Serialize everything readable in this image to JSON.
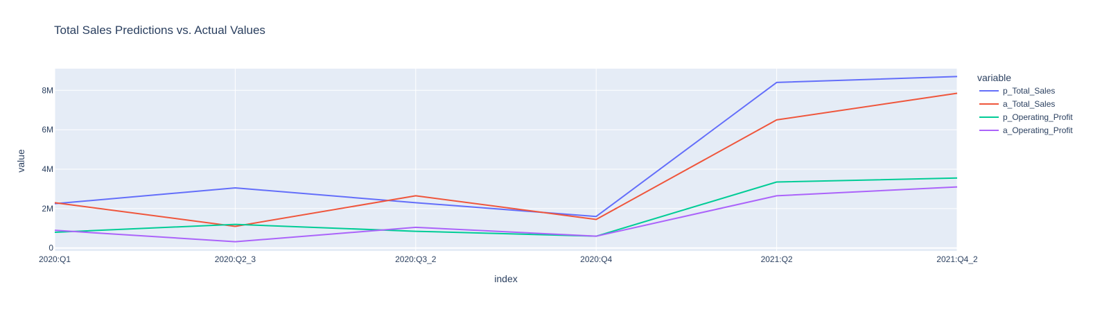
{
  "chart_data": {
    "type": "line",
    "title": "Total Sales Predictions vs. Actual Values",
    "xlabel": "index",
    "ylabel": "value",
    "categories": [
      "2020:Q1",
      "2020:Q2_3",
      "2020:Q3_2",
      "2020:Q4",
      "2021:Q2",
      "2021:Q4_2"
    ],
    "ylim": [
      -150000,
      9100000
    ],
    "yticks": [
      0,
      2000000,
      4000000,
      6000000,
      8000000
    ],
    "ytick_labels": [
      "0",
      "2M",
      "4M",
      "6M",
      "8M"
    ],
    "legend_title": "variable",
    "legend_position": "right",
    "grid": true,
    "colors": {
      "plot_bg": "#e5ecf6",
      "grid": "#ffffff"
    },
    "series": [
      {
        "name": "p_Total_Sales",
        "color": "#636efa",
        "values": [
          2250000,
          3050000,
          2300000,
          1600000,
          8400000,
          8700000
        ]
      },
      {
        "name": "a_Total_Sales",
        "color": "#ef553b",
        "values": [
          2300000,
          1100000,
          2650000,
          1450000,
          6500000,
          7850000
        ]
      },
      {
        "name": "p_Operating_Profit",
        "color": "#00cc96",
        "values": [
          800000,
          1200000,
          850000,
          600000,
          3350000,
          3550000
        ]
      },
      {
        "name": "a_Operating_Profit",
        "color": "#ab63fa",
        "values": [
          900000,
          320000,
          1050000,
          600000,
          2650000,
          3100000
        ]
      }
    ]
  }
}
